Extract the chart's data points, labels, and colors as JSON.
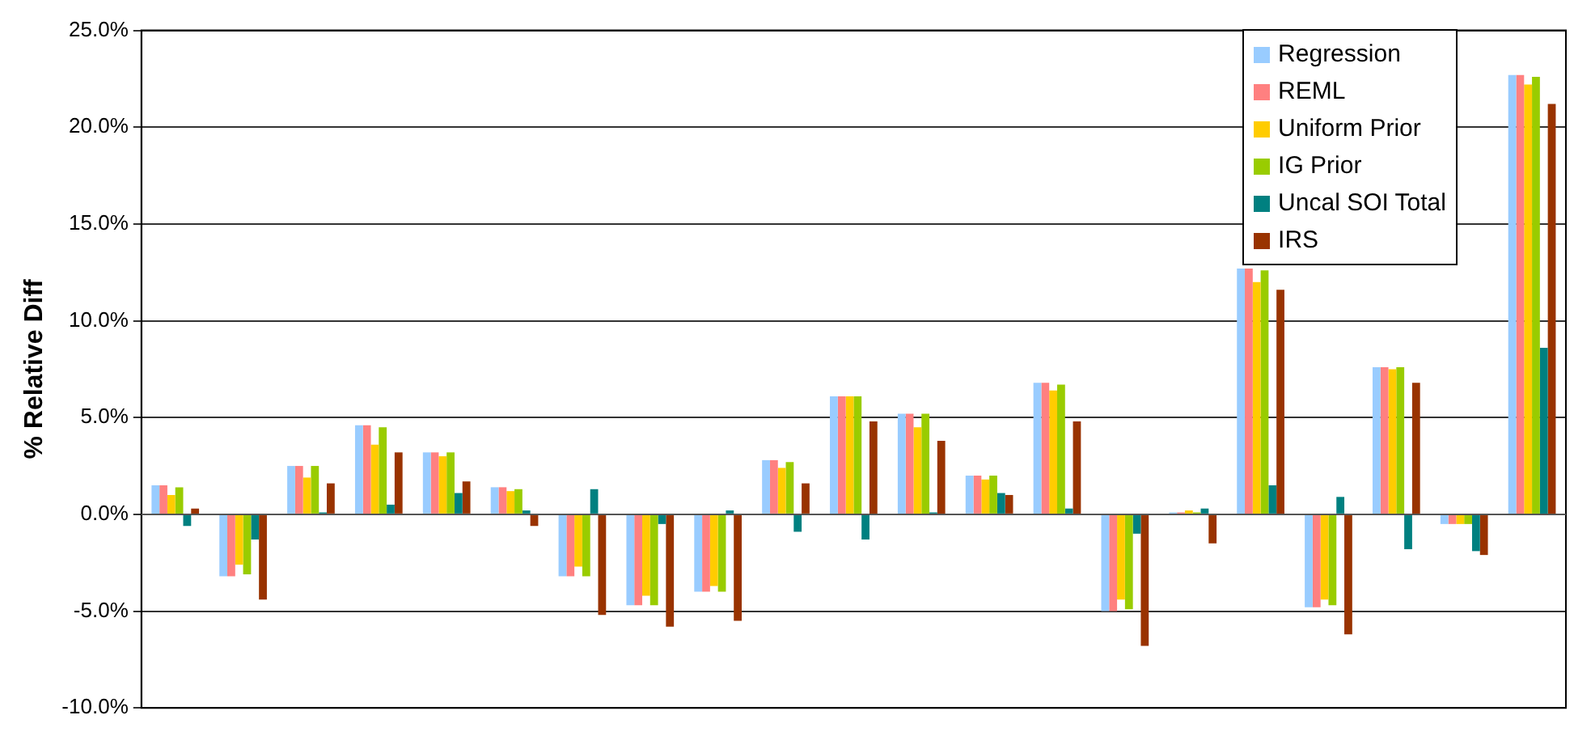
{
  "chart_data": {
    "type": "bar",
    "ylabel": "% Relative Diff",
    "categories": [
      null,
      null,
      null,
      null,
      null,
      null,
      null,
      null,
      null,
      null,
      null,
      null,
      null,
      null,
      null,
      null,
      null,
      null,
      null,
      null,
      null
    ],
    "series": [
      {
        "name": "Regression",
        "color": "#99ccff",
        "values": [
          1.5,
          -3.2,
          2.5,
          4.6,
          3.2,
          1.4,
          -3.2,
          -4.7,
          -4.0,
          2.8,
          6.1,
          5.2,
          2.0,
          6.8,
          -5.0,
          0.1,
          12.7,
          -4.8,
          7.6,
          -0.5,
          22.7
        ]
      },
      {
        "name": "REML",
        "color": "#ff8080",
        "values": [
          1.5,
          -3.2,
          2.5,
          4.6,
          3.2,
          1.4,
          -3.2,
          -4.7,
          -4.0,
          2.8,
          6.1,
          5.2,
          2.0,
          6.8,
          -5.0,
          0.1,
          12.7,
          -4.8,
          7.6,
          -0.5,
          22.7
        ]
      },
      {
        "name": "Uniform Prior",
        "color": "#ffcc00",
        "values": [
          1.0,
          -2.6,
          1.9,
          3.6,
          3.0,
          1.2,
          -2.7,
          -4.2,
          -3.7,
          2.4,
          6.1,
          4.5,
          1.8,
          6.4,
          -4.4,
          0.2,
          12.0,
          -4.4,
          7.5,
          -0.5,
          22.2
        ]
      },
      {
        "name": "IG Prior",
        "color": "#99cc00",
        "values": [
          1.4,
          -3.1,
          2.5,
          4.5,
          3.2,
          1.3,
          -3.2,
          -4.7,
          -4.0,
          2.7,
          6.1,
          5.2,
          2.0,
          6.7,
          -4.9,
          0.1,
          12.6,
          -4.7,
          7.6,
          -0.5,
          22.6
        ]
      },
      {
        "name": "Uncal SOI Total",
        "color": "#008080",
        "values": [
          -0.6,
          -1.3,
          0.1,
          0.5,
          1.1,
          0.2,
          1.3,
          -0.5,
          0.2,
          -0.9,
          -1.3,
          0.1,
          1.1,
          0.3,
          -1.0,
          0.3,
          1.5,
          0.9,
          -1.8,
          -1.9,
          8.6
        ]
      },
      {
        "name": "IRS",
        "color": "#993300",
        "values": [
          0.3,
          -4.4,
          1.6,
          3.2,
          1.7,
          -0.6,
          -5.2,
          -5.8,
          -5.5,
          1.6,
          4.8,
          3.8,
          1.0,
          4.8,
          -6.8,
          -1.5,
          11.6,
          -6.2,
          6.8,
          -2.1,
          21.2
        ]
      }
    ],
    "ylim": [
      -10,
      25
    ],
    "yticks": [
      {
        "value": -10,
        "label": "-10.0%"
      },
      {
        "value": -5,
        "label": "-5.0%"
      },
      {
        "value": 0,
        "label": "0.0%"
      },
      {
        "value": 5,
        "label": "5.0%"
      },
      {
        "value": 10,
        "label": "10.0%"
      },
      {
        "value": 15,
        "label": "15.0%"
      },
      {
        "value": 20,
        "label": "20.0%"
      },
      {
        "value": 25,
        "label": "25.0%"
      }
    ],
    "grid": "y",
    "legend": "top right"
  }
}
